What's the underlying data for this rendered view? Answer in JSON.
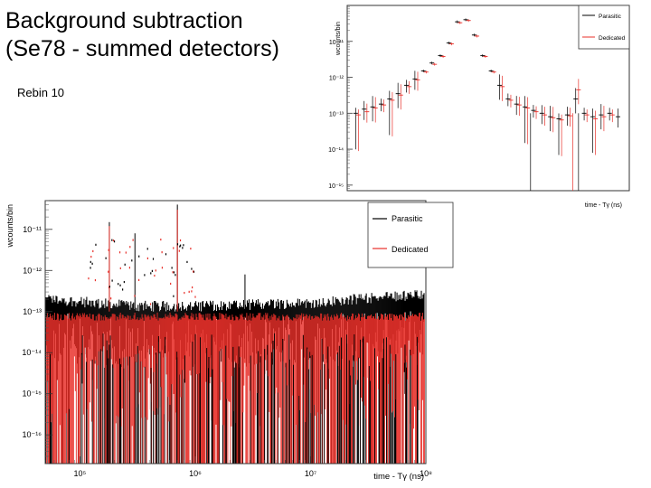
{
  "slide": {
    "title_line1": "Background subtraction",
    "title_line2": "(Se78 - summed detectors)",
    "note": "Rebin 10"
  },
  "colors": {
    "parasitic": "#000000",
    "dedicated": "#e8302a"
  },
  "chart_data": [
    {
      "type": "scatter",
      "description_source": "top-right inset, rebinned",
      "xlabel": "time - Tγ (ns)",
      "ylabel": "wcounts/bin",
      "yscale": "log",
      "ylim": [
        7e-16,
        1e-10
      ],
      "ytick_labels": [
        "10⁻¹¹",
        "10⁻¹²",
        "10⁻¹³",
        "10⁻¹⁴",
        "10⁻¹⁵"
      ],
      "ytick_values": [
        1e-11,
        1e-12,
        1e-13,
        1e-14,
        1e-15
      ],
      "xlim": [
        0,
        100
      ],
      "legend": {
        "position": "top-right",
        "entries": [
          "Parasitic",
          "Dedicated"
        ]
      },
      "series": [
        {
          "name": "Parasitic",
          "x": [
            3,
            6,
            9,
            12,
            15,
            18,
            21,
            24,
            27,
            30,
            33,
            36,
            39,
            42,
            45,
            48,
            51,
            54,
            57,
            60,
            63,
            66,
            69,
            72,
            75,
            78,
            81,
            84,
            87,
            90,
            93,
            96
          ],
          "y": [
            1e-13,
            1.3e-13,
            1.5e-13,
            1.8e-13,
            2.5e-13,
            3.5e-13,
            6e-13,
            9e-13,
            1.5e-12,
            2.5e-12,
            4e-12,
            9e-12,
            3.5e-11,
            4e-11,
            1.5e-11,
            4e-12,
            1.5e-12,
            6e-13,
            2.5e-13,
            1.8e-13,
            1.5e-13,
            1.2e-13,
            1e-13,
            8e-14,
            7e-14,
            9e-14,
            2.5e-13,
            1e-13,
            8e-14,
            9e-14,
            1e-13,
            8e-14
          ]
        },
        {
          "name": "Dedicated",
          "x": [
            4,
            7,
            10,
            13,
            16,
            19,
            22,
            25,
            28,
            31,
            34,
            37,
            40,
            43,
            46,
            49,
            52,
            55,
            58,
            61,
            64,
            67,
            70,
            73,
            76,
            79,
            82,
            85,
            88,
            91,
            94
          ],
          "y": [
            9e-14,
            1.1e-13,
            1.4e-13,
            1.7e-13,
            2.3e-13,
            3.2e-13,
            5.5e-13,
            8.5e-13,
            1.4e-12,
            2.3e-12,
            3.8e-12,
            8.5e-12,
            3.3e-11,
            3.8e-11,
            1.4e-11,
            3.8e-12,
            1.4e-12,
            5.5e-13,
            2.3e-13,
            1.7e-13,
            1.4e-13,
            1.1e-13,
            9e-14,
            7.5e-14,
            6.5e-14,
            8.5e-14,
            4.5e-13,
            9e-14,
            7e-14,
            8e-14,
            9e-14
          ]
        }
      ]
    },
    {
      "type": "line",
      "description_source": "bottom-left main plot",
      "xlabel": "time - Tγ (ns)",
      "ylabel": "wcounts/bin",
      "xscale": "log",
      "yscale": "log",
      "xlim": [
        50000,
        100000000
      ],
      "ylim": [
        2e-17,
        5e-11
      ],
      "xtick_labels": [
        "10⁵",
        "10⁶",
        "10⁷",
        "10⁸"
      ],
      "xtick_values": [
        100000,
        1000000,
        10000000,
        100000000
      ],
      "ytick_labels": [
        "10⁻¹¹",
        "10⁻¹²",
        "10⁻¹³",
        "10⁻¹⁴",
        "10⁻¹⁵",
        "10⁻¹⁶"
      ],
      "ytick_values": [
        1e-11,
        1e-12,
        1e-13,
        1e-14,
        1e-15,
        1e-16
      ],
      "legend": {
        "position": "top-right",
        "entries": [
          "Parasitic",
          "Dedicated"
        ]
      },
      "series": [
        {
          "name": "Parasitic",
          "baseline_level": [
            {
              "x": 50000,
              "y": 1.5e-13
            },
            {
              "x": 300000,
              "y": 1e-13
            },
            {
              "x": 1000000,
              "y": 1e-13
            },
            {
              "x": 10000000,
              "y": 1.2e-13
            },
            {
              "x": 100000000,
              "y": 2e-13
            }
          ],
          "spikes": [
            {
              "x": 700000,
              "y": 4e-11
            },
            {
              "x": 180000,
              "y": 1.5e-11
            },
            {
              "x": 300000,
              "y": 8e-12
            },
            {
              "x": 2700000,
              "y": 8e-13
            }
          ]
        },
        {
          "name": "Dedicated",
          "baseline_level": [
            {
              "x": 50000,
              "y": 6e-14
            },
            {
              "x": 1000000,
              "y": 6e-14
            },
            {
              "x": 100000000,
              "y": 6e-14
            }
          ],
          "spikes": [
            {
              "x": 700000,
              "y": 3e-11
            },
            {
              "x": 180000,
              "y": 1.2e-11
            }
          ]
        }
      ]
    }
  ]
}
